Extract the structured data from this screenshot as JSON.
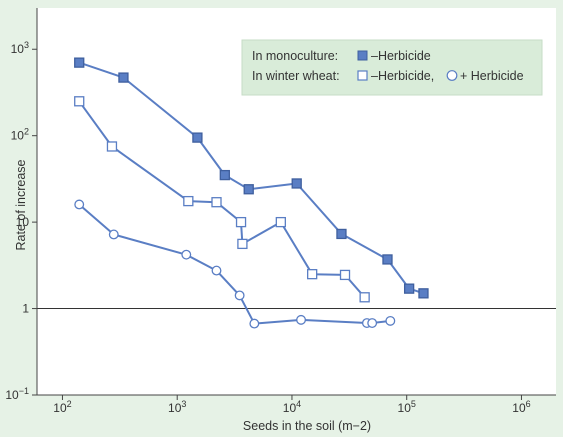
{
  "chart_data": {
    "type": "scatter",
    "title": "",
    "xlabel": "Seeds in the soil (m−2)",
    "ylabel": "Rate of increase",
    "xscale": "log",
    "yscale": "log",
    "xlim": [
      60,
      2000000
    ],
    "ylim": [
      0.1,
      3000
    ],
    "grid": false,
    "reference_line_y": 1,
    "x_ticks": [
      {
        "value": 100,
        "base": "10",
        "exp": "2"
      },
      {
        "value": 1000,
        "base": "10",
        "exp": "3"
      },
      {
        "value": 10000,
        "base": "10",
        "exp": "4"
      },
      {
        "value": 100000,
        "base": "10",
        "exp": "5"
      },
      {
        "value": 1000000,
        "base": "10",
        "exp": "6"
      }
    ],
    "y_ticks": [
      {
        "value": 0.1,
        "base": "10",
        "exp": "−1"
      },
      {
        "value": 1,
        "base": "1",
        "exp": ""
      },
      {
        "value": 10,
        "base": "10",
        "exp": ""
      },
      {
        "value": 100,
        "base": "10",
        "exp": "2"
      },
      {
        "value": 1000,
        "base": "10",
        "exp": "3"
      }
    ],
    "legend": {
      "placement": "top-right",
      "line1_prefix": "In monoculture:",
      "line1_label": "–Herbicide",
      "line2_prefix": "In winter wheat:",
      "line2_label_a": "–Herbicide,",
      "line2_label_b": "+ Herbicide"
    },
    "colors": {
      "background": "#e6f2e6",
      "plot_area": "#ffffff",
      "series": "#5a7ec4",
      "legend_bg": "#d9ecd9"
    },
    "series": [
      {
        "marker": "filled-square",
        "points": [
          [
            140,
            700
          ],
          [
            340,
            470
          ],
          [
            1500,
            95
          ],
          [
            2600,
            35
          ],
          [
            4200,
            24
          ],
          [
            11000,
            28
          ],
          [
            27000,
            7.3
          ],
          [
            68000,
            3.7
          ],
          [
            105000,
            1.7
          ],
          [
            140000,
            1.5
          ]
        ]
      },
      {
        "marker": "open-square",
        "points": [
          [
            140,
            250
          ],
          [
            270,
            75
          ],
          [
            1250,
            17.5
          ],
          [
            2200,
            17
          ],
          [
            3600,
            10
          ],
          [
            3700,
            5.6
          ],
          [
            8000,
            10
          ],
          [
            15000,
            2.5
          ],
          [
            29000,
            2.45
          ],
          [
            43000,
            1.35
          ]
        ]
      },
      {
        "marker": "open-circle",
        "points": [
          [
            140,
            16
          ],
          [
            280,
            7.2
          ],
          [
            1200,
            4.2
          ],
          [
            2200,
            2.75
          ],
          [
            3500,
            1.42
          ],
          [
            4700,
            0.67
          ],
          [
            12000,
            0.74
          ],
          [
            45000,
            0.68
          ],
          [
            50000,
            0.68
          ],
          [
            72000,
            0.72
          ]
        ]
      }
    ]
  }
}
